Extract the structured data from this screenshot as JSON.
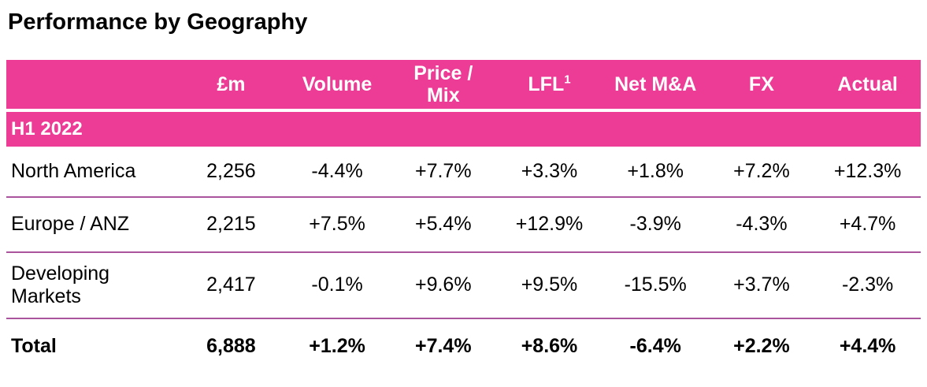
{
  "page": {
    "title": "Performance by Geography"
  },
  "colors": {
    "accent_pink": "#ED3C95",
    "separator": "#A9549C",
    "text": "#000000",
    "header_text": "#FFFFFF"
  },
  "table": {
    "corner_label": "",
    "columns": [
      "£m",
      "Volume",
      "Price / Mix",
      "LFL",
      "Net M&A",
      "FX",
      "Actual"
    ],
    "lfl_superscript": "1",
    "section_label": "H1 2022",
    "rows": [
      {
        "label": "North America",
        "bold": false,
        "values": [
          "2,256",
          "-4.4%",
          "+7.7%",
          "+3.3%",
          "+1.8%",
          "+7.2%",
          "+12.3%"
        ]
      },
      {
        "label": "Europe / ANZ",
        "bold": false,
        "values": [
          "2,215",
          "+7.5%",
          "+5.4%",
          "+12.9%",
          "-3.9%",
          "-4.3%",
          "+4.7%"
        ]
      },
      {
        "label": "Developing Markets",
        "bold": false,
        "values": [
          "2,417",
          "-0.1%",
          "+9.6%",
          "+9.5%",
          "-15.5%",
          "+3.7%",
          "-2.3%"
        ]
      },
      {
        "label": "Total",
        "bold": true,
        "values": [
          "6,888",
          "+1.2%",
          "+7.4%",
          "+8.6%",
          "-6.4%",
          "+2.2%",
          "+4.4%"
        ]
      }
    ]
  },
  "chart_data": {
    "type": "table",
    "title": "Performance by Geography",
    "section": "H1 2022",
    "columns": [
      "£m",
      "Volume",
      "Price / Mix",
      "LFL¹",
      "Net M&A",
      "FX",
      "Actual"
    ],
    "rows": [
      {
        "label": "North America",
        "gbp_m": "2,256",
        "volume": "-4.4%",
        "price_mix": "+7.7%",
        "lfl": "+3.3%",
        "net_ma": "+1.8%",
        "fx": "+7.2%",
        "actual": "+12.3%"
      },
      {
        "label": "Europe / ANZ",
        "gbp_m": "2,215",
        "volume": "+7.5%",
        "price_mix": "+5.4%",
        "lfl": "+12.9%",
        "net_ma": "-3.9%",
        "fx": "-4.3%",
        "actual": "+4.7%"
      },
      {
        "label": "Developing Markets",
        "gbp_m": "2,417",
        "volume": "-0.1%",
        "price_mix": "+9.6%",
        "lfl": "+9.5%",
        "net_ma": "-15.5%",
        "fx": "+3.7%",
        "actual": "-2.3%"
      },
      {
        "label": "Total",
        "gbp_m": "6,888",
        "volume": "+1.2%",
        "price_mix": "+7.4%",
        "lfl": "+8.6%",
        "net_ma": "-6.4%",
        "fx": "+2.2%",
        "actual": "+4.4%"
      }
    ]
  }
}
